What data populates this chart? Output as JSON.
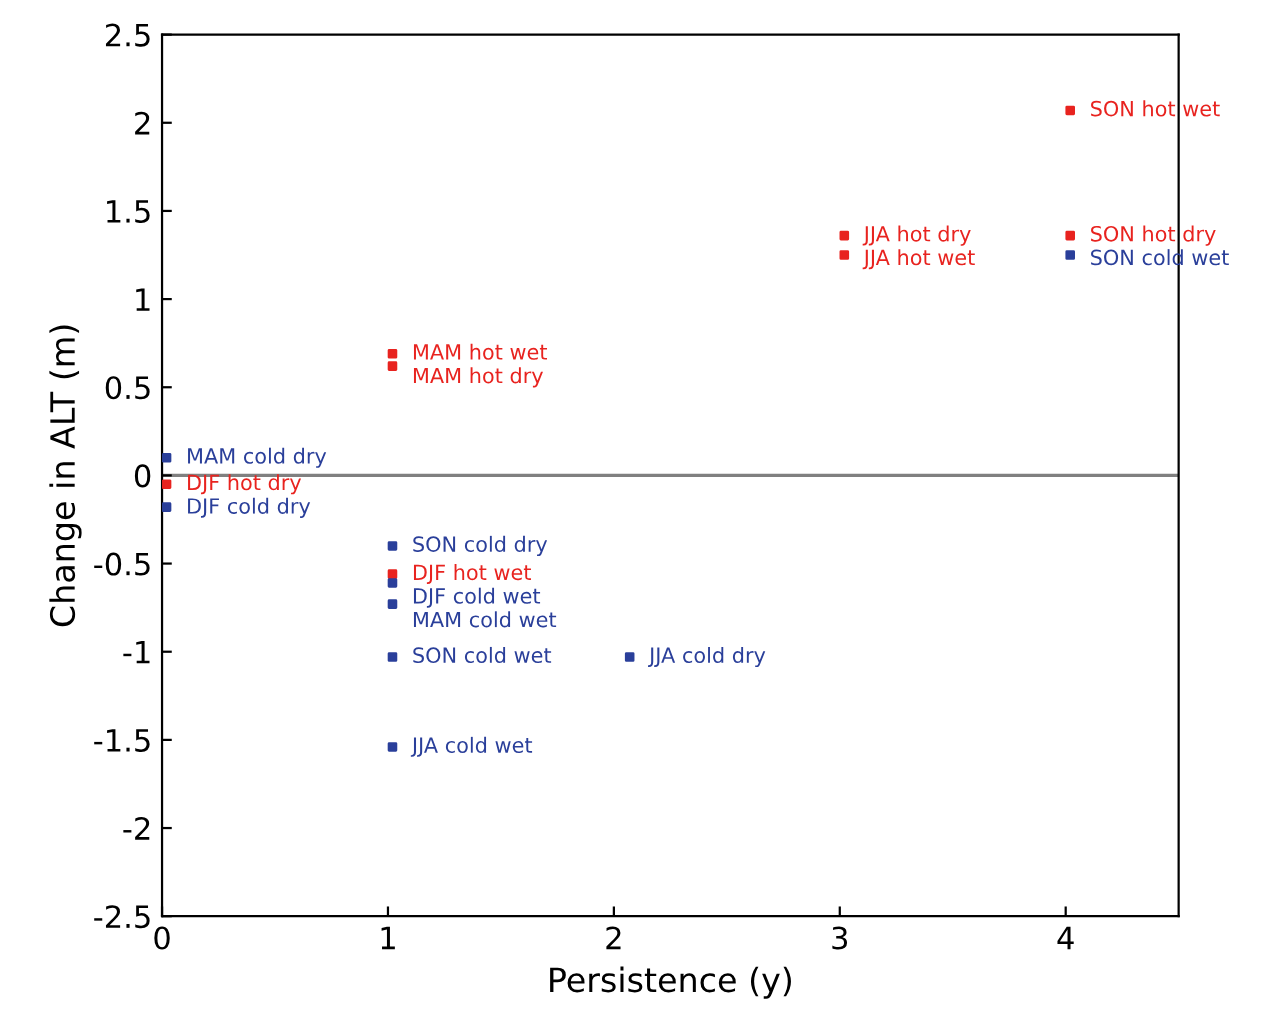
{
  "chart_data": {
    "type": "scatter",
    "xlabel": "Persistence (y)",
    "ylabel": "Change in ALT (m)",
    "xlim": [
      0,
      4.5
    ],
    "xticks": [
      0,
      1,
      2,
      3,
      4
    ],
    "ylim": [
      -2.5,
      2.5
    ],
    "yticks": [
      -2.5,
      -2,
      -1.5,
      -1,
      -0.5,
      0,
      0.5,
      1,
      1.5,
      2,
      2.5
    ],
    "grid": false,
    "legend": false,
    "marker": "square",
    "ref_lines": [
      {
        "axis": "y",
        "value": 0,
        "color": "#808080"
      }
    ],
    "series": [
      {
        "color": "#e8231f",
        "x": [
          4.02,
          3.02,
          3.02,
          4.02,
          1.02,
          1.02,
          0.02,
          1.02
        ],
        "values": [
          2.07,
          1.36,
          1.25,
          1.36,
          0.69,
          0.62,
          -0.05,
          -0.56
        ]
      },
      {
        "color": "#2a3f9a",
        "x": [
          4.02,
          0.02,
          0.02,
          1.02,
          1.02,
          1.02,
          1.02,
          2.07,
          1.02
        ],
        "values": [
          1.25,
          0.1,
          -0.18,
          -0.4,
          -0.61,
          -0.73,
          -1.03,
          -1.03,
          -1.54
        ]
      }
    ],
    "annotations": [
      {
        "text": "SON hot wet",
        "x": 4.02,
        "y": 2.07
      },
      {
        "text": "JJA hot dry",
        "x": 3.02,
        "y": 1.36
      },
      {
        "text": "JJA hot wet",
        "x": 3.02,
        "y": 1.25
      },
      {
        "text": "SON hot dry",
        "x": 4.02,
        "y": 1.36
      },
      {
        "text": "MAM hot wet",
        "x": 1.02,
        "y": 0.69
      },
      {
        "text": "MAM hot dry",
        "x": 1.02,
        "y": 0.62
      },
      {
        "text": "DJF hot dry",
        "x": 0.02,
        "y": -0.05
      },
      {
        "text": "DJF hot wet",
        "x": 1.02,
        "y": -0.56
      },
      {
        "text": "SON cold wet",
        "x": 4.02,
        "y": 1.25
      },
      {
        "text": "MAM cold dry",
        "x": 0.02,
        "y": 0.1
      },
      {
        "text": "DJF cold dry",
        "x": 0.02,
        "y": -0.18
      },
      {
        "text": "SON cold dry",
        "x": 1.02,
        "y": -0.4
      },
      {
        "text": "DJF cold wet",
        "x": 1.02,
        "y": -0.61
      },
      {
        "text": "MAM cold wet",
        "x": 1.02,
        "y": -0.73
      },
      {
        "text": "SON cold wet",
        "x": 1.02,
        "y": -1.03
      },
      {
        "text": "JJA cold dry",
        "x": 2.07,
        "y": -1.03
      },
      {
        "text": "JJA cold wet",
        "x": 1.02,
        "y": -1.54
      }
    ]
  }
}
